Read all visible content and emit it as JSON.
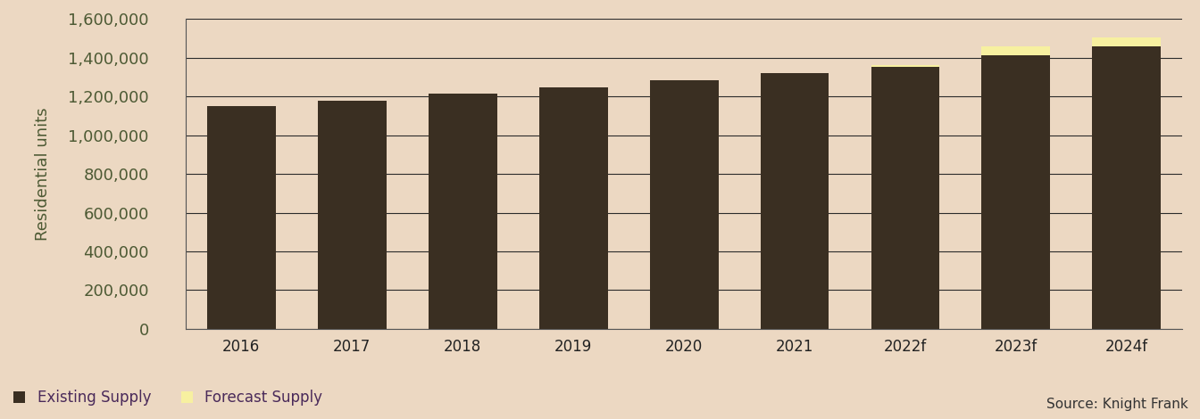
{
  "chart_data": {
    "type": "bar",
    "stacked": true,
    "y_label": "Residential units",
    "source": "Source: Knight Frank",
    "categories": [
      "2016",
      "2017",
      "2018",
      "2019",
      "2020",
      "2021",
      "2022f",
      "2023f",
      "2024f"
    ],
    "series": [
      {
        "name": "Existing Supply",
        "color": "#3a2f22",
        "values": [
          1148000,
          1178000,
          1215000,
          1248000,
          1283000,
          1320000,
          1350000,
          1413000,
          1457000
        ]
      },
      {
        "name": "Forecast Supply",
        "color": "#f7f0a0",
        "values": [
          0,
          0,
          0,
          0,
          0,
          0,
          12000,
          43000,
          48000
        ]
      }
    ],
    "ylim": [
      0,
      1600000
    ],
    "yticks": [
      0,
      {
        "value": 200000,
        "label": "200,000"
      },
      {
        "value": 400000,
        "label": "400,000"
      },
      {
        "value": 600000,
        "label": "600,000"
      },
      {
        "value": 800000,
        "label": "800,000"
      },
      {
        "value": 1000000,
        "label": "1,000,000"
      },
      {
        "value": 1200000,
        "label": "1,200,000"
      },
      {
        "value": 1400000,
        "label": "1,400,000"
      },
      {
        "value": 1600000,
        "label": "1,600,000"
      }
    ],
    "grid": true,
    "legend": "lower left"
  }
}
